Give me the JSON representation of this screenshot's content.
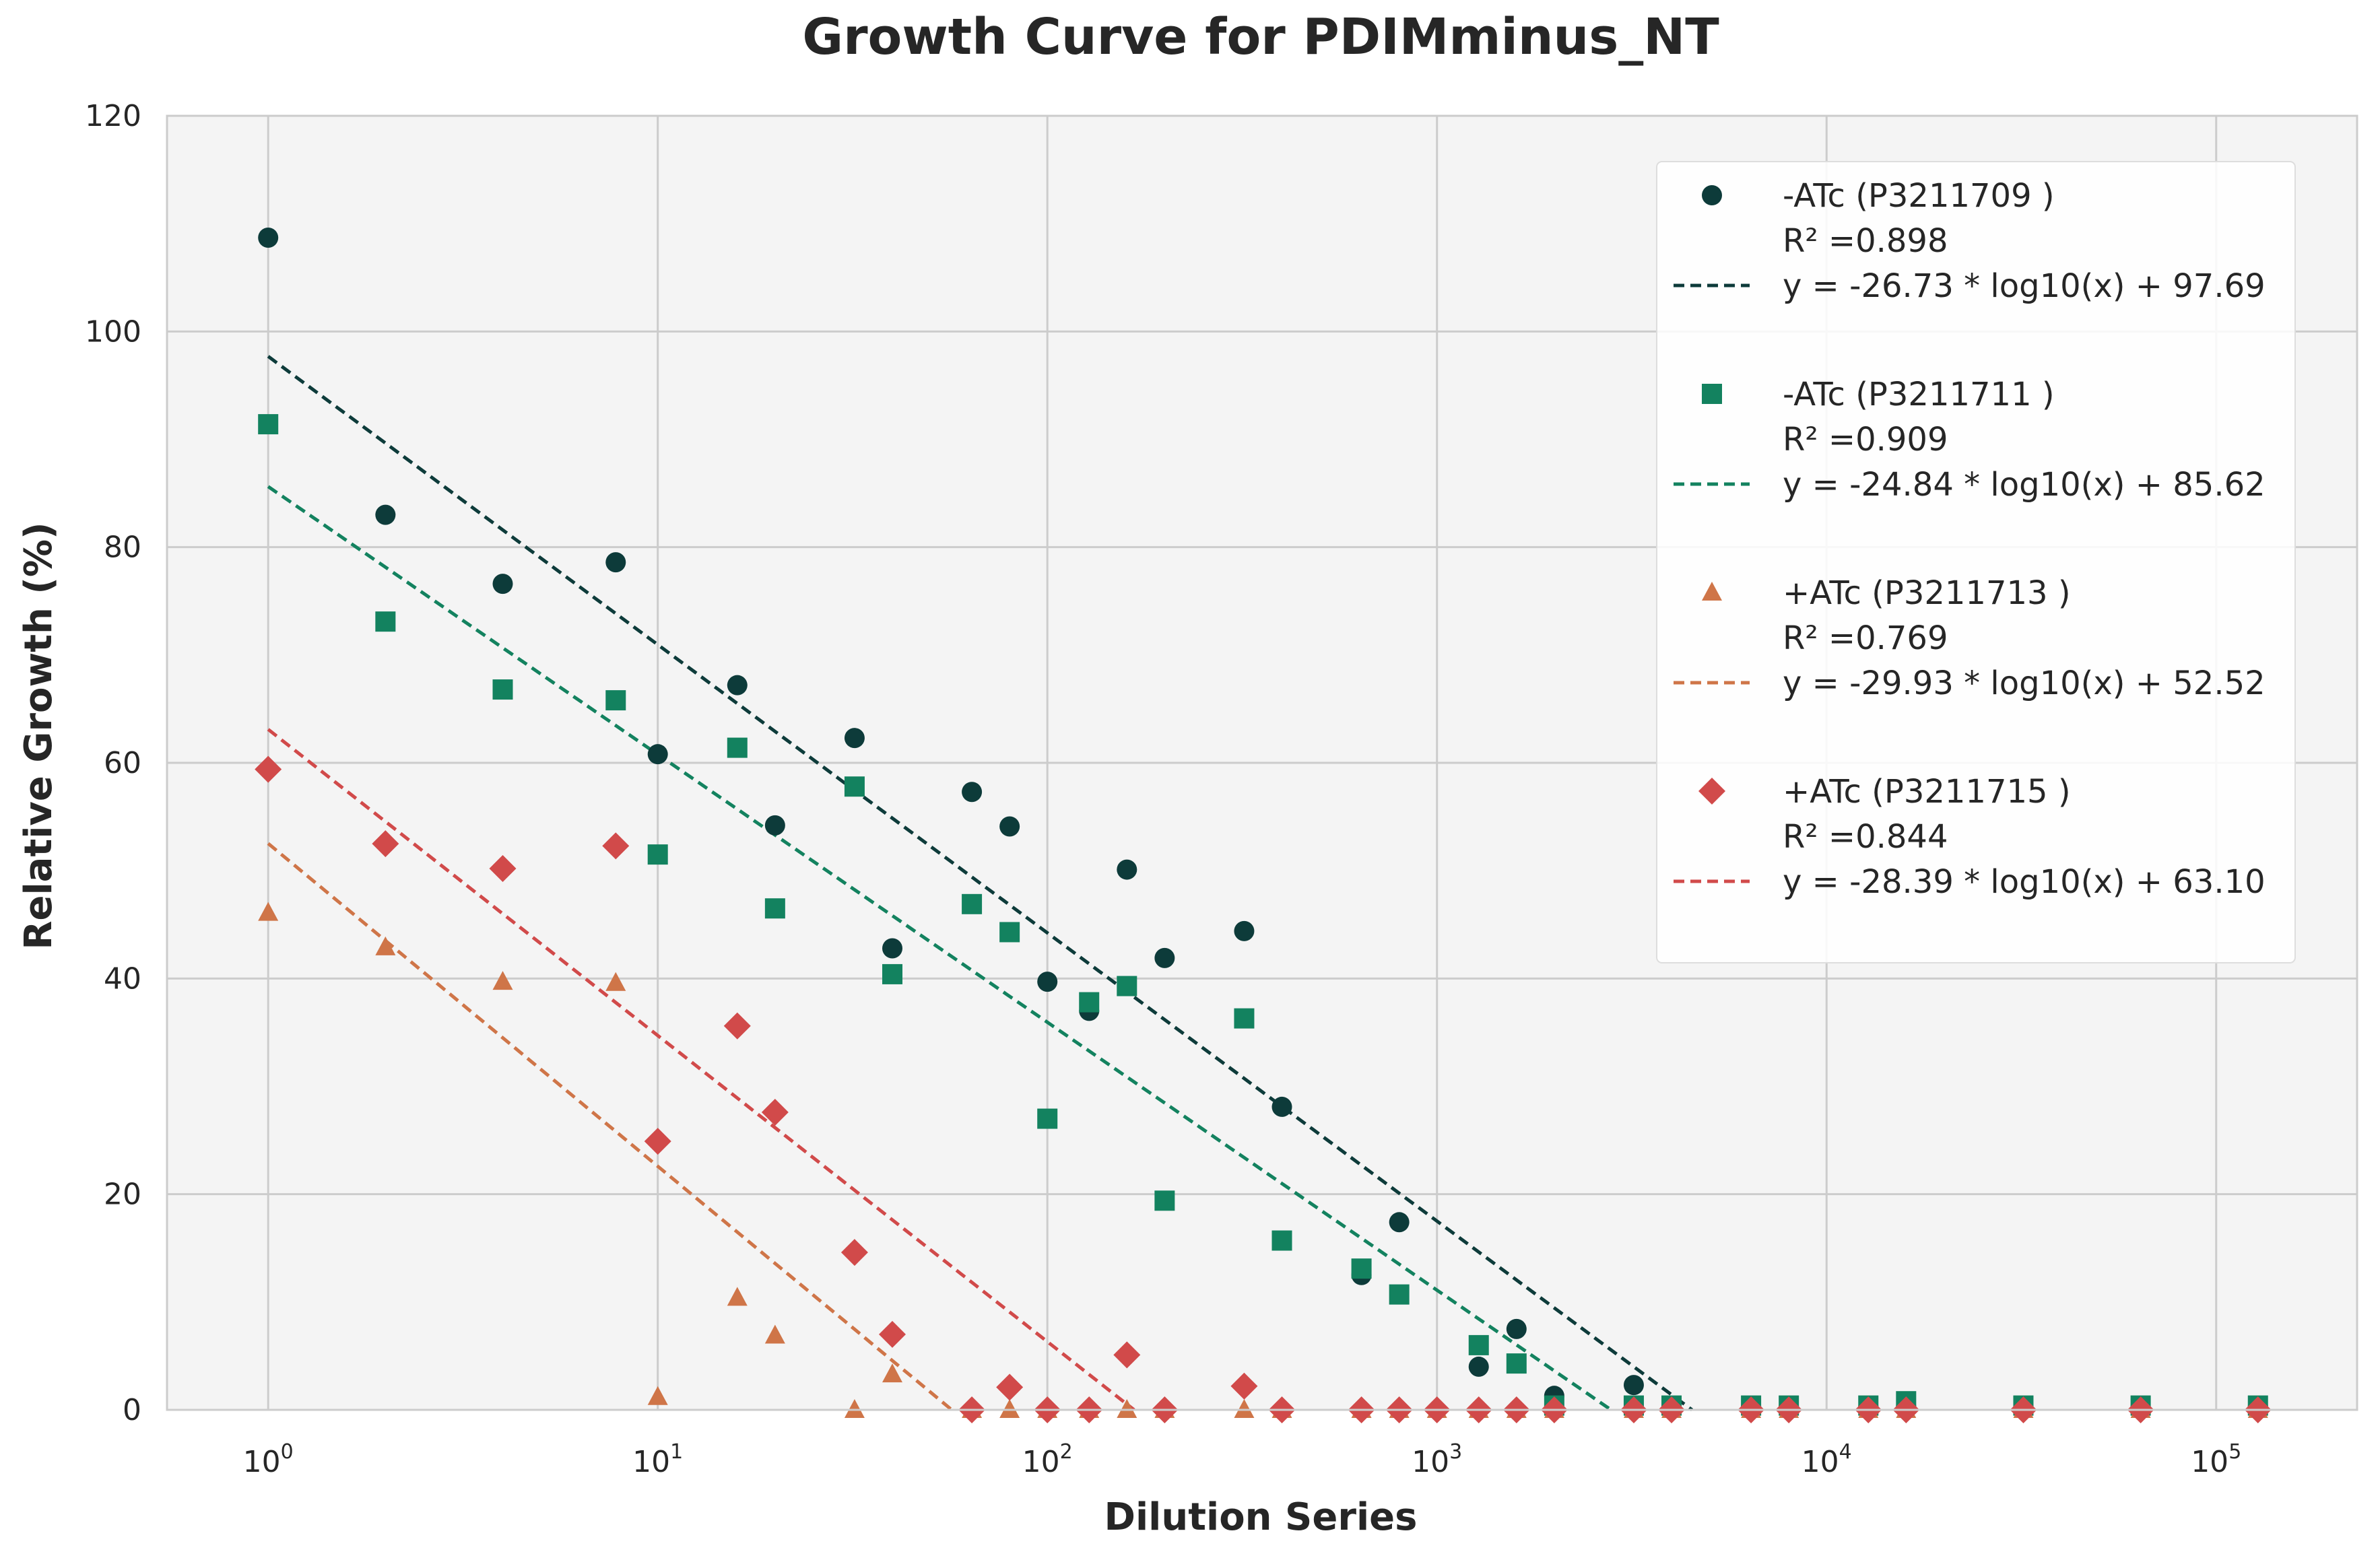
{
  "chart_data": {
    "type": "scatter",
    "title": "Growth Curve for PDIMminus_NT",
    "xlabel": "Dilution Series",
    "ylabel": "Relative Growth (%)",
    "xscale": "log",
    "xlim": [
      0.55,
      230000
    ],
    "ylim": [
      0,
      120
    ],
    "grid": true,
    "legend_position": "top-right",
    "x_ticks": [
      {
        "base": "10",
        "exp": "0",
        "value": 1
      },
      {
        "base": "10",
        "exp": "1",
        "value": 10
      },
      {
        "base": "10",
        "exp": "2",
        "value": 100
      },
      {
        "base": "10",
        "exp": "3",
        "value": 1000
      },
      {
        "base": "10",
        "exp": "4",
        "value": 10000
      },
      {
        "base": "10",
        "exp": "5",
        "value": 100000
      }
    ],
    "y_ticks": [
      "0",
      "20",
      "40",
      "60",
      "80",
      "100",
      "120"
    ],
    "series": [
      {
        "name": "-ATc (P3211709 )",
        "marker": "circle",
        "color": "#0d3b3a",
        "r2_label": "R² =0.898",
        "fit_label": "y = -26.73 * log10(x) + 97.69",
        "fit": {
          "slope": -26.73,
          "intercept": 97.69
        },
        "points": [
          [
            1,
            108.7
          ],
          [
            2,
            83.0
          ],
          [
            4,
            76.6
          ],
          [
            7.8,
            78.6
          ],
          [
            10,
            60.8
          ],
          [
            16,
            67.2
          ],
          [
            20,
            54.2
          ],
          [
            32,
            62.3
          ],
          [
            40,
            42.8
          ],
          [
            64,
            57.3
          ],
          [
            80,
            54.1
          ],
          [
            100,
            39.7
          ],
          [
            128,
            37.0
          ],
          [
            160,
            50.1
          ],
          [
            200,
            41.9
          ],
          [
            320,
            44.4
          ],
          [
            400,
            28.1
          ],
          [
            640,
            12.5
          ],
          [
            800,
            17.4
          ],
          [
            1280,
            4.0
          ],
          [
            1600,
            7.5
          ],
          [
            2000,
            1.3
          ],
          [
            3200,
            2.3
          ],
          [
            4000,
            0.3
          ],
          [
            6400,
            0.3
          ],
          [
            8000,
            0.3
          ],
          [
            12800,
            0.3
          ],
          [
            16000,
            0.3
          ],
          [
            32000,
            0.3
          ],
          [
            64000,
            0.3
          ],
          [
            128000,
            0.3
          ]
        ]
      },
      {
        "name": "-ATc (P3211711 )",
        "marker": "square",
        "color": "#13825f",
        "r2_label": "R² =0.909",
        "fit_label": "y = -24.84 * log10(x) + 85.62",
        "fit": {
          "slope": -24.84,
          "intercept": 85.62
        },
        "points": [
          [
            1,
            91.4
          ],
          [
            2,
            73.1
          ],
          [
            4,
            66.8
          ],
          [
            7.8,
            65.8
          ],
          [
            10,
            51.5
          ],
          [
            16,
            61.4
          ],
          [
            20,
            46.5
          ],
          [
            32,
            57.8
          ],
          [
            40,
            40.4
          ],
          [
            64,
            46.9
          ],
          [
            80,
            44.3
          ],
          [
            100,
            27.0
          ],
          [
            128,
            37.8
          ],
          [
            160,
            39.3
          ],
          [
            200,
            19.4
          ],
          [
            320,
            36.3
          ],
          [
            400,
            15.7
          ],
          [
            640,
            13.1
          ],
          [
            800,
            10.7
          ],
          [
            1280,
            6.0
          ],
          [
            1600,
            4.3
          ],
          [
            2000,
            0.4
          ],
          [
            3200,
            0.4
          ],
          [
            4000,
            0.4
          ],
          [
            6400,
            0.4
          ],
          [
            8000,
            0.4
          ],
          [
            12800,
            0.4
          ],
          [
            16000,
            0.8
          ],
          [
            32000,
            0.4
          ],
          [
            64000,
            0.4
          ],
          [
            128000,
            0.4
          ]
        ]
      },
      {
        "name": "+ATc (P3211713 )",
        "marker": "triangle",
        "color": "#cf7548",
        "r2_label": "R² =0.769",
        "fit_label": "y = -29.93 * log10(x) + 52.52",
        "fit": {
          "slope": -29.93,
          "intercept": 52.52
        },
        "points": [
          [
            1,
            46.1
          ],
          [
            2,
            42.9
          ],
          [
            4,
            39.7
          ],
          [
            7.8,
            39.6
          ],
          [
            10,
            1.2
          ],
          [
            16,
            10.4
          ],
          [
            20,
            6.9
          ],
          [
            32,
            0.0
          ],
          [
            40,
            3.3
          ],
          [
            64,
            0.0
          ],
          [
            80,
            0.0
          ],
          [
            100,
            0.0
          ],
          [
            128,
            0.0
          ],
          [
            160,
            0.0
          ],
          [
            200,
            0.0
          ],
          [
            320,
            0.0
          ],
          [
            400,
            0.0
          ],
          [
            640,
            0.0
          ],
          [
            800,
            0.0
          ],
          [
            1000,
            0.0
          ],
          [
            1280,
            0.0
          ],
          [
            1600,
            0.0
          ],
          [
            2000,
            0.0
          ],
          [
            3200,
            0.0
          ],
          [
            4000,
            0.0
          ],
          [
            6400,
            0.0
          ],
          [
            8000,
            0.0
          ],
          [
            12800,
            0.0
          ],
          [
            16000,
            0.0
          ],
          [
            32000,
            0.0
          ],
          [
            64000,
            0.0
          ],
          [
            128000,
            0.0
          ]
        ]
      },
      {
        "name": "+ATc (P3211715 )",
        "marker": "diamond",
        "color": "#d14a4a",
        "r2_label": "R² =0.844",
        "fit_label": "y = -28.39 * log10(x) + 63.10",
        "fit": {
          "slope": -28.39,
          "intercept": 63.1
        },
        "points": [
          [
            1,
            59.4
          ],
          [
            2,
            52.5
          ],
          [
            4,
            50.2
          ],
          [
            7.8,
            52.3
          ],
          [
            10,
            24.9
          ],
          [
            16,
            35.6
          ],
          [
            20,
            27.6
          ],
          [
            32,
            14.6
          ],
          [
            40,
            7.0
          ],
          [
            64,
            0.0
          ],
          [
            80,
            2.1
          ],
          [
            100,
            0.0
          ],
          [
            128,
            0.0
          ],
          [
            160,
            5.1
          ],
          [
            200,
            0.0
          ],
          [
            320,
            2.2
          ],
          [
            400,
            0.0
          ],
          [
            640,
            0.0
          ],
          [
            800,
            0.0
          ],
          [
            1000,
            0.0
          ],
          [
            1280,
            0.0
          ],
          [
            1600,
            0.0
          ],
          [
            2000,
            0.0
          ],
          [
            3200,
            0.0
          ],
          [
            4000,
            0.0
          ],
          [
            6400,
            0.0
          ],
          [
            8000,
            0.0
          ],
          [
            12800,
            0.0
          ],
          [
            16000,
            0.0
          ],
          [
            32000,
            0.0
          ],
          [
            64000,
            0.0
          ],
          [
            128000,
            0.0
          ]
        ]
      }
    ]
  }
}
